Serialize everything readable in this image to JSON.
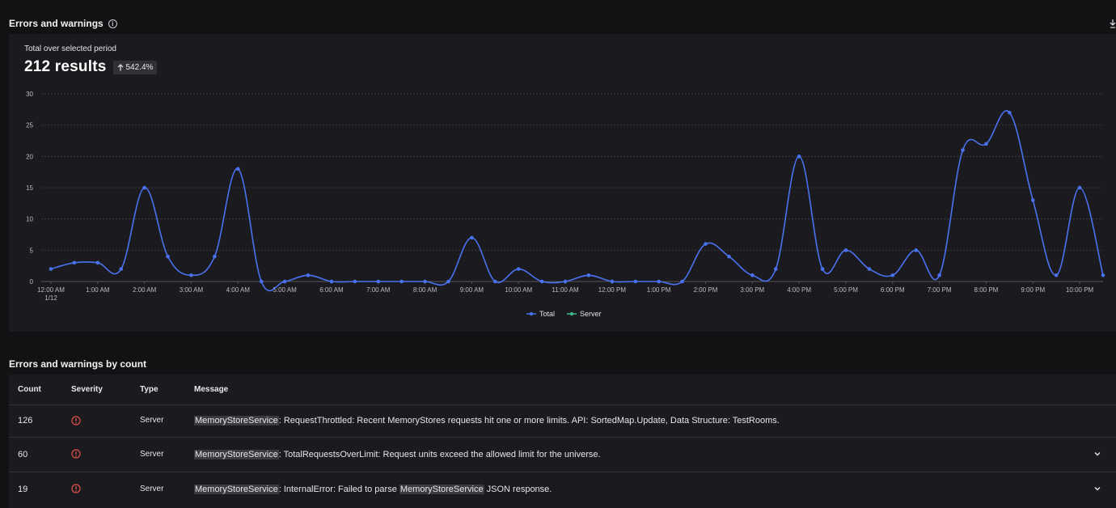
{
  "header": {
    "title": "Errors and warnings",
    "info_icon": "info-icon",
    "download_icon": "download-icon"
  },
  "summary": {
    "label": "Total over selected period",
    "results": "212 results",
    "change": "542.4%",
    "change_icon": "arrow-up-icon"
  },
  "chart_data": {
    "type": "line",
    "x_ticks": [
      "12:00 AM",
      "1:00 AM",
      "2:00 AM",
      "3:00 AM",
      "4:00 AM",
      "5:00 AM",
      "6:00 AM",
      "7:00 AM",
      "8:00 AM",
      "9:00 AM",
      "10:00 AM",
      "11:00 AM",
      "12:00 PM",
      "1:00 PM",
      "2:00 PM",
      "3:00 PM",
      "4:00 PM",
      "5:00 PM",
      "6:00 PM",
      "7:00 PM",
      "8:00 PM",
      "9:00 PM",
      "10:00 PM"
    ],
    "x_first_sublabel": "1/12",
    "y_ticks": [
      0,
      5,
      10,
      15,
      20,
      25,
      30
    ],
    "ylim": [
      0,
      30
    ],
    "x_interval": "30 min",
    "series": [
      {
        "name": "Total",
        "color": "#4a72f0",
        "values": [
          2,
          3,
          3,
          2,
          15,
          4,
          1,
          4,
          18,
          0,
          0,
          1,
          0,
          0,
          0,
          0,
          0,
          0,
          7,
          0,
          2,
          0,
          0,
          1,
          0,
          0,
          0,
          0,
          6,
          4,
          1,
          2,
          20,
          2,
          5,
          2,
          1,
          5,
          1,
          21,
          22,
          27,
          13,
          1,
          15,
          1
        ]
      },
      {
        "name": "Server",
        "color": "#3fb88a",
        "values": []
      }
    ],
    "legend_position": "bottom-center",
    "grid": true
  },
  "table_section": {
    "title": "Errors and warnings by count",
    "columns": [
      "Count",
      "Severity",
      "Type",
      "Message"
    ],
    "rows": [
      {
        "count": "126",
        "severity_icon": "error-circle-icon",
        "type": "Server",
        "service": "MemoryStoreService",
        "message": ": RequestThrottled: Recent MemoryStores requests hit one or more limits. API: SortedMap.Update, Data Structure: TestRooms.",
        "expandable": false
      },
      {
        "count": "60",
        "severity_icon": "error-circle-icon",
        "type": "Server",
        "service": "MemoryStoreService",
        "message": ": TotalRequestsOverLimit: Request units exceed the allowed limit for the universe.",
        "expandable": true
      },
      {
        "count": "19",
        "severity_icon": "error-circle-icon",
        "type": "Server",
        "service": "MemoryStoreService",
        "message_a": ": InternalError: Failed to parse ",
        "service_b": "MemoryStoreService",
        "message_b": " JSON response.",
        "expandable": true
      }
    ]
  },
  "colors": {
    "error": "#e0504a",
    "line": "#4a72f0",
    "server": "#3fb88a"
  }
}
